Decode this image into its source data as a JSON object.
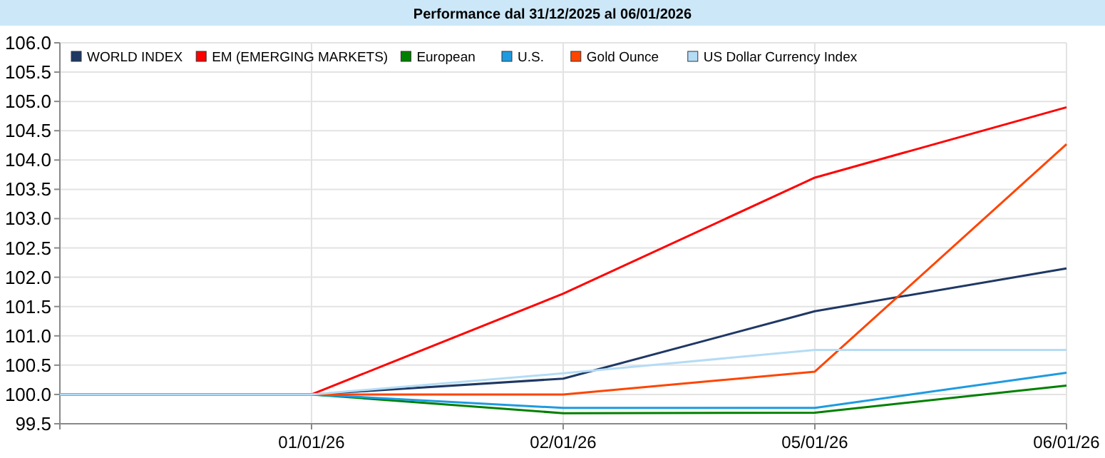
{
  "chart_data": {
    "type": "line",
    "title": "Performance dal 31/12/2025 al 06/01/2026",
    "categories": [
      null,
      "01/01/26",
      "02/01/26",
      "05/01/26",
      "06/01/26"
    ],
    "series": [
      {
        "name": "WORLD INDEX",
        "color": "#1f3864",
        "values": [
          100,
          100,
          100.27,
          101.42,
          102.15
        ]
      },
      {
        "name": "EM (EMERGING MARKETS)",
        "color": "#ff0000",
        "values": [
          100,
          100,
          101.72,
          103.7,
          104.9
        ]
      },
      {
        "name": "European",
        "color": "#008000",
        "values": [
          100,
          100,
          99.68,
          99.69,
          100.15
        ]
      },
      {
        "name": "U.S.",
        "color": "#1e9be0",
        "values": [
          100,
          100,
          99.77,
          99.77,
          100.37
        ]
      },
      {
        "name": "Gold Ounce",
        "color": "#ff4500",
        "values": [
          100,
          100,
          100,
          100.39,
          104.27
        ]
      },
      {
        "name": "US Dollar Currency Index",
        "color": "#b4dcf5",
        "values": [
          100,
          100,
          100.36,
          100.76,
          100.76
        ]
      }
    ],
    "ylim": [
      99.5,
      106
    ],
    "yticks": [
      {
        "value": 99.5,
        "label": "99.5"
      },
      {
        "value": 100,
        "label": "100.0"
      },
      {
        "value": 100.5,
        "label": "100.5"
      },
      {
        "value": 101,
        "label": "101.0"
      },
      {
        "value": 101.5,
        "label": "101.5"
      },
      {
        "value": 102,
        "label": "102.0"
      },
      {
        "value": 102.5,
        "label": "102.5"
      },
      {
        "value": 103,
        "label": "103.0"
      },
      {
        "value": 103.5,
        "label": "103.5"
      },
      {
        "value": 104,
        "label": "104.0"
      },
      {
        "value": 104.5,
        "label": "104.5"
      },
      {
        "value": 105,
        "label": "105.0"
      },
      {
        "value": 105.5,
        "label": "105.5"
      },
      {
        "value": 106,
        "label": "106.0"
      }
    ],
    "grid": true,
    "legend": "top left",
    "marker": "none",
    "line_style": "solid"
  }
}
